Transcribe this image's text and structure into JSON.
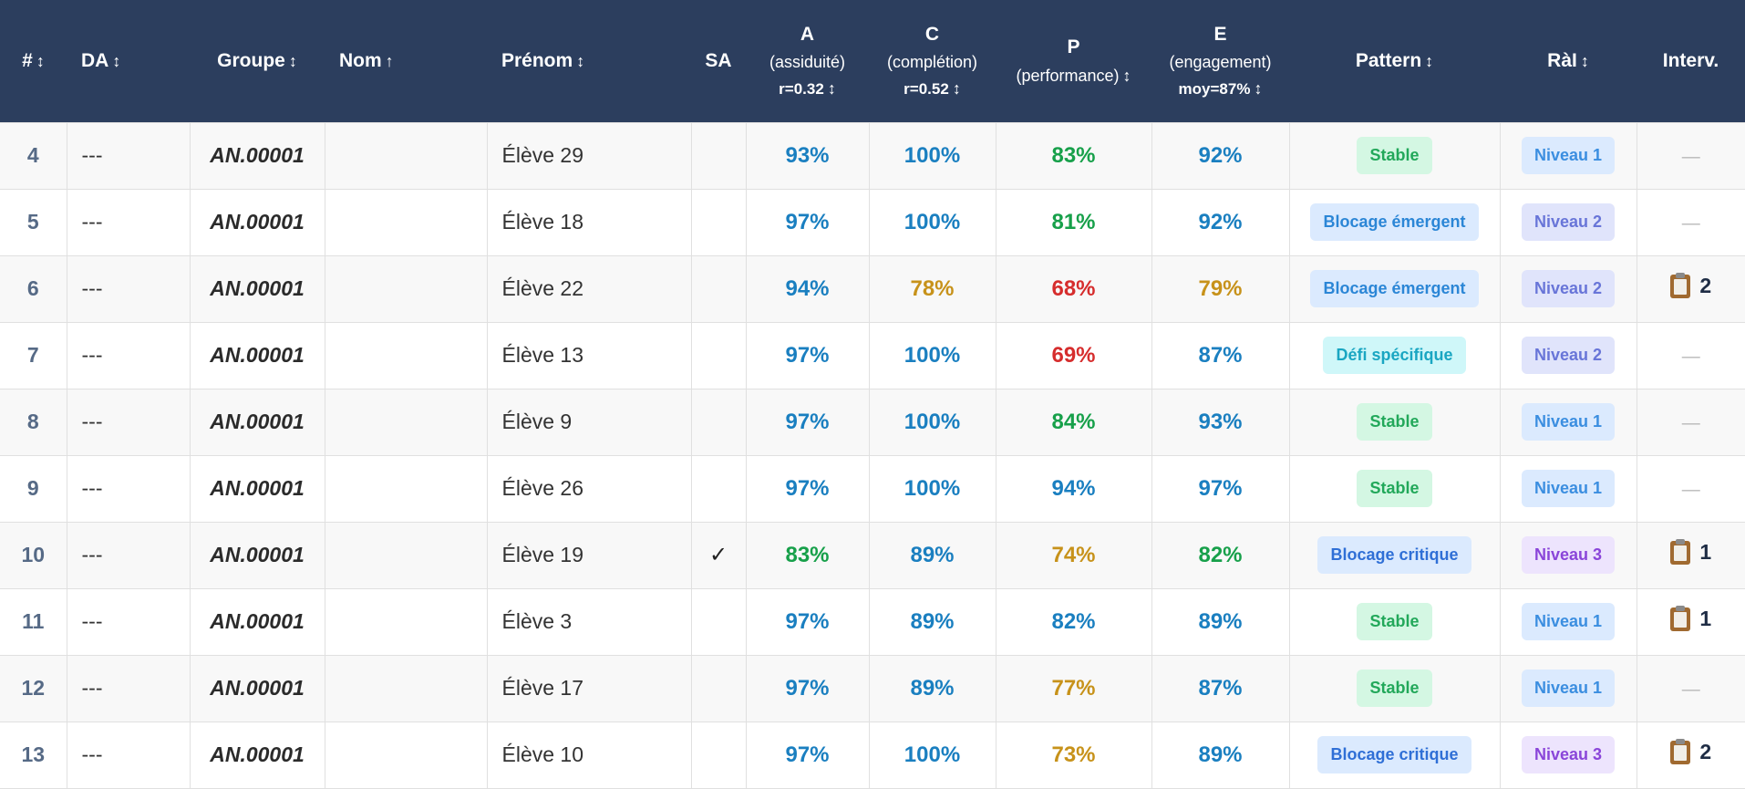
{
  "columns": [
    {
      "key": "num",
      "label": "#",
      "sort": "↕"
    },
    {
      "key": "da",
      "label": "DA",
      "sort": "↕"
    },
    {
      "key": "groupe",
      "label": "Groupe",
      "sort": "↕"
    },
    {
      "key": "nom",
      "label": "Nom",
      "sort": "↑"
    },
    {
      "key": "prenom",
      "label": "Prénom",
      "sort": "↕"
    },
    {
      "key": "sa",
      "label": "SA",
      "sort": ""
    },
    {
      "key": "a",
      "label": "A",
      "sub": "(assiduité)",
      "stat": "r=0.32",
      "sort": "↕"
    },
    {
      "key": "c",
      "label": "C",
      "sub": "(complétion)",
      "stat": "r=0.52",
      "sort": "↕"
    },
    {
      "key": "p",
      "label": "P",
      "sub": "(performance)",
      "sort": "↕"
    },
    {
      "key": "e",
      "label": "E",
      "sub": "(engagement)",
      "stat": "moy=87%",
      "sort": "↕"
    },
    {
      "key": "pattern",
      "label": "Pattern",
      "sort": "↕"
    },
    {
      "key": "ral",
      "label": "RàI",
      "sort": "↕"
    },
    {
      "key": "interv",
      "label": "Interv.",
      "sort": ""
    }
  ],
  "colors": {
    "header_bg": "#2c3e5e",
    "blue": "#1a7fc0",
    "green": "#17a04a",
    "amber": "#c7921a",
    "red": "#d62d2d"
  },
  "rows": [
    {
      "num": "4",
      "da": "---",
      "groupe": "AN.00001",
      "nom": "",
      "prenom": "Élève 29",
      "sa": "",
      "a": "93%",
      "a_c": "blue",
      "c": "100%",
      "c_c": "blue",
      "p": "83%",
      "p_c": "green",
      "e": "92%",
      "e_c": "blue",
      "pattern": "Stable",
      "ral": "Niveau 1",
      "interv": ""
    },
    {
      "num": "5",
      "da": "---",
      "groupe": "AN.00001",
      "nom": "",
      "prenom": "Élève 18",
      "sa": "",
      "a": "97%",
      "a_c": "blue",
      "c": "100%",
      "c_c": "blue",
      "p": "81%",
      "p_c": "green",
      "e": "92%",
      "e_c": "blue",
      "pattern": "Blocage émergent",
      "ral": "Niveau 2",
      "interv": ""
    },
    {
      "num": "6",
      "da": "---",
      "groupe": "AN.00001",
      "nom": "",
      "prenom": "Élève 22",
      "sa": "",
      "a": "94%",
      "a_c": "blue",
      "c": "78%",
      "c_c": "amber",
      "p": "68%",
      "p_c": "red",
      "e": "79%",
      "e_c": "amber",
      "pattern": "Blocage émergent",
      "ral": "Niveau 2",
      "interv": "2"
    },
    {
      "num": "7",
      "da": "---",
      "groupe": "AN.00001",
      "nom": "",
      "prenom": "Élève 13",
      "sa": "",
      "a": "97%",
      "a_c": "blue",
      "c": "100%",
      "c_c": "blue",
      "p": "69%",
      "p_c": "red",
      "e": "87%",
      "e_c": "blue",
      "pattern": "Défi spécifique",
      "ral": "Niveau 2",
      "interv": ""
    },
    {
      "num": "8",
      "da": "---",
      "groupe": "AN.00001",
      "nom": "",
      "prenom": "Élève 9",
      "sa": "",
      "a": "97%",
      "a_c": "blue",
      "c": "100%",
      "c_c": "blue",
      "p": "84%",
      "p_c": "green",
      "e": "93%",
      "e_c": "blue",
      "pattern": "Stable",
      "ral": "Niveau 1",
      "interv": ""
    },
    {
      "num": "9",
      "da": "---",
      "groupe": "AN.00001",
      "nom": "",
      "prenom": "Élève 26",
      "sa": "",
      "a": "97%",
      "a_c": "blue",
      "c": "100%",
      "c_c": "blue",
      "p": "94%",
      "p_c": "blue",
      "e": "97%",
      "e_c": "blue",
      "pattern": "Stable",
      "ral": "Niveau 1",
      "interv": ""
    },
    {
      "num": "10",
      "da": "---",
      "groupe": "AN.00001",
      "nom": "",
      "prenom": "Élève 19",
      "sa": "✓",
      "a": "83%",
      "a_c": "green",
      "c": "89%",
      "c_c": "blue",
      "p": "74%",
      "p_c": "amber",
      "e": "82%",
      "e_c": "green",
      "pattern": "Blocage critique",
      "ral": "Niveau 3",
      "interv": "1"
    },
    {
      "num": "11",
      "da": "---",
      "groupe": "AN.00001",
      "nom": "",
      "prenom": "Élève 3",
      "sa": "",
      "a": "97%",
      "a_c": "blue",
      "c": "89%",
      "c_c": "blue",
      "p": "82%",
      "p_c": "blue",
      "e": "89%",
      "e_c": "blue",
      "pattern": "Stable",
      "ral": "Niveau 1",
      "interv": "1"
    },
    {
      "num": "12",
      "da": "---",
      "groupe": "AN.00001",
      "nom": "",
      "prenom": "Élève 17",
      "sa": "",
      "a": "97%",
      "a_c": "blue",
      "c": "89%",
      "c_c": "blue",
      "p": "77%",
      "p_c": "amber",
      "e": "87%",
      "e_c": "blue",
      "pattern": "Stable",
      "ral": "Niveau 1",
      "interv": ""
    },
    {
      "num": "13",
      "da": "---",
      "groupe": "AN.00001",
      "nom": "",
      "prenom": "Élève 10",
      "sa": "",
      "a": "97%",
      "a_c": "blue",
      "c": "100%",
      "c_c": "blue",
      "p": "73%",
      "p_c": "amber",
      "e": "89%",
      "e_c": "blue",
      "pattern": "Blocage critique",
      "ral": "Niveau 3",
      "interv": "2"
    }
  ],
  "badges": {
    "pattern": {
      "Stable": {
        "bg": "#d4f7e3",
        "fg": "#22a85a"
      },
      "Blocage émergent": {
        "bg": "#dbeafe",
        "fg": "#2b86d6"
      },
      "Défi spécifique": {
        "bg": "#cff7f9",
        "fg": "#1aa6c2"
      },
      "Blocage critique": {
        "bg": "#dbeafe",
        "fg": "#2f6fd6"
      }
    },
    "ral": {
      "Niveau 1": {
        "bg": "#dbeafe",
        "fg": "#3b8ee0"
      },
      "Niveau 2": {
        "bg": "#e0e4fb",
        "fg": "#6875d8"
      },
      "Niveau 3": {
        "bg": "#ede4fd",
        "fg": "#8a45d9"
      }
    }
  },
  "empty_interv": "—"
}
